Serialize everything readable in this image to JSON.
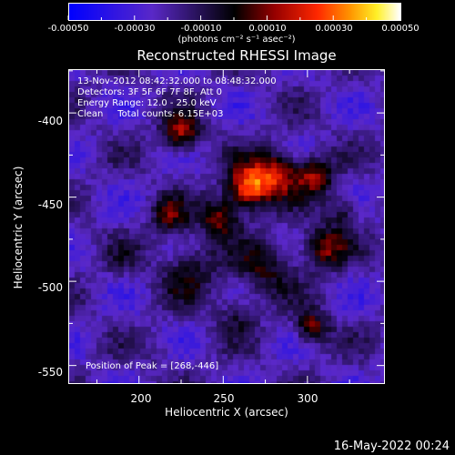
{
  "colorbar": {
    "tick_labels": [
      "-0.00050",
      "-0.00030",
      "-0.00010",
      "0.00010",
      "0.00030",
      "0.00050"
    ],
    "unit_label": "(photons cm⁻² s⁻¹ asec⁻²)",
    "range": [
      -0.0005,
      0.0005
    ]
  },
  "info": {
    "line1": "13-Nov-2012 08:42:32.000 to 08:48:32.000",
    "line2": "Detectors: 3F 5F 6F 7F 8F, Att 0",
    "line3": "Energy Range: 12.0 - 25.0 keV",
    "line4": "Clean     Total counts: 6.15E+03",
    "peak": "Position of Peak = [268,-446]"
  },
  "datestamp": "16-May-2022 00:24",
  "chart_data": {
    "type": "heatmap",
    "title": "Reconstructed RHESSI Image",
    "xlabel": "Heliocentric X (arcsec)",
    "ylabel": "Heliocentric Y (arcsec)",
    "xlim": [
      158,
      346
    ],
    "ylim": [
      -561,
      -374
    ],
    "x_ticks": [
      200,
      250,
      300
    ],
    "y_ticks": [
      -400,
      -450,
      -500,
      -550
    ],
    "grid": false,
    "peak_position": [
      268,
      -446
    ],
    "emission_sources": [
      {
        "x": 265,
        "y": -444,
        "amplitude": 0.00052,
        "sigma": 9
      },
      {
        "x": 282,
        "y": -436,
        "amplitude": 0.00036,
        "sigma": 10
      },
      {
        "x": 225,
        "y": -412,
        "amplitude": 0.00036,
        "sigma": 8
      },
      {
        "x": 248,
        "y": -462,
        "amplitude": 0.00032,
        "sigma": 8
      },
      {
        "x": 305,
        "y": -437,
        "amplitude": 0.00032,
        "sigma": 8
      },
      {
        "x": 218,
        "y": -462,
        "amplitude": 0.00024,
        "sigma": 8
      },
      {
        "x": 230,
        "y": -493,
        "amplitude": 0.0002,
        "sigma": 12
      },
      {
        "x": 275,
        "y": -492,
        "amplitude": 0.00022,
        "sigma": 12
      },
      {
        "x": 310,
        "y": -480,
        "amplitude": 0.00032,
        "sigma": 9
      },
      {
        "x": 322,
        "y": -458,
        "amplitude": 0.0002,
        "sigma": 7
      },
      {
        "x": 303,
        "y": -528,
        "amplitude": 0.00032,
        "sigma": 7
      },
      {
        "x": 258,
        "y": -520,
        "amplitude": 0.00016,
        "sigma": 8
      },
      {
        "x": 190,
        "y": -488,
        "amplitude": 8e-05,
        "sigma": 8
      },
      {
        "x": 213,
        "y": -542,
        "amplitude": 6e-05,
        "sigma": 6
      }
    ]
  }
}
